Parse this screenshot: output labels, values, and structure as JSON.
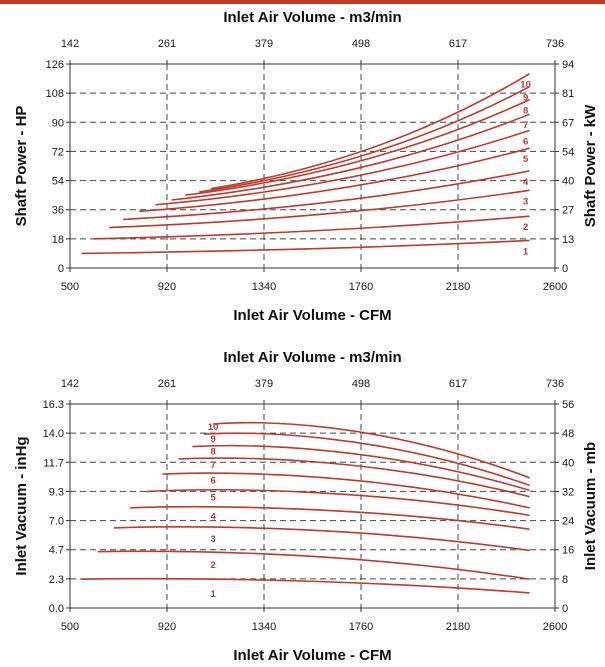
{
  "chart_data": [
    {
      "type": "line",
      "top_axis_label": "Inlet Air Volume - m3/min",
      "top_axis_ticks": [
        "142",
        "261",
        "379",
        "498",
        "617",
        "736"
      ],
      "xlabel": "Inlet Air Volume - CFM",
      "x_ticks": [
        "500",
        "920",
        "1340",
        "1760",
        "2180",
        "2600"
      ],
      "xlim": [
        500,
        2600
      ],
      "ylabel": "Shaft Power - HP",
      "y_ticks": [
        "0",
        "18",
        "36",
        "54",
        "72",
        "90",
        "108",
        "126"
      ],
      "ylim": [
        0,
        126
      ],
      "y2label": "Shaft Power - kW",
      "y2_ticks": [
        "0",
        "13",
        "27",
        "40",
        "54",
        "67",
        "81",
        "94"
      ],
      "grid": true,
      "line_color": "#c0392b",
      "series": [
        {
          "name": "1",
          "x": [
            550,
            2490
          ],
          "y": [
            9,
            17
          ]
        },
        {
          "name": "2",
          "x": [
            600,
            2490
          ],
          "y": [
            18,
            32
          ]
        },
        {
          "name": "3",
          "x": [
            670,
            2490
          ],
          "y": [
            25,
            48
          ]
        },
        {
          "name": "4",
          "x": [
            730,
            2490
          ],
          "y": [
            30,
            60
          ]
        },
        {
          "name": "5",
          "x": [
            800,
            2490
          ],
          "y": [
            35,
            74
          ]
        },
        {
          "name": "6",
          "x": [
            870,
            2490
          ],
          "y": [
            39,
            85
          ]
        },
        {
          "name": "7",
          "x": [
            940,
            2490
          ],
          "y": [
            42,
            95
          ]
        },
        {
          "name": "8",
          "x": [
            1000,
            2490
          ],
          "y": [
            45,
            104
          ]
        },
        {
          "name": "9",
          "x": [
            1060,
            2490
          ],
          "y": [
            47,
            112
          ]
        },
        {
          "name": "10",
          "x": [
            1110,
            2490
          ],
          "y": [
            49,
            120
          ]
        }
      ]
    },
    {
      "type": "line",
      "top_axis_label": "Inlet Air Volume - m3/min",
      "top_axis_ticks": [
        "142",
        "261",
        "379",
        "498",
        "617",
        "736"
      ],
      "xlabel": "Inlet Air Volume - CFM",
      "x_ticks": [
        "500",
        "920",
        "1340",
        "1760",
        "2180",
        "2600"
      ],
      "xlim": [
        500,
        2600
      ],
      "ylabel": "Inlet Vacuum - inHg",
      "y_ticks": [
        "0.0",
        "2.3",
        "4.7",
        "7.0",
        "9.3",
        "11.7",
        "14.0",
        "16.3"
      ],
      "ylim": [
        0,
        16.3
      ],
      "y2label": "Inlet Vacuum - mb",
      "y2_ticks": [
        "0",
        "8",
        "16",
        "24",
        "32",
        "40",
        "48",
        "56"
      ],
      "grid": true,
      "line_color": "#c0392b",
      "series": [
        {
          "name": "1",
          "x": [
            550,
            1200,
            2490
          ],
          "y": [
            2.3,
            2.4,
            1.2
          ]
        },
        {
          "name": "2",
          "x": [
            620,
            1250,
            2490
          ],
          "y": [
            4.5,
            4.6,
            2.3
          ]
        },
        {
          "name": "3",
          "x": [
            690,
            1300,
            2490
          ],
          "y": [
            6.4,
            6.6,
            4.6
          ]
        },
        {
          "name": "4",
          "x": [
            760,
            1330,
            2490
          ],
          "y": [
            8.0,
            8.2,
            6.3
          ]
        },
        {
          "name": "5",
          "x": [
            830,
            1370,
            2490
          ],
          "y": [
            9.3,
            9.6,
            7.4
          ]
        },
        {
          "name": "6",
          "x": [
            900,
            1400,
            2490
          ],
          "y": [
            10.7,
            10.9,
            8.0
          ]
        },
        {
          "name": "7",
          "x": [
            970,
            1430,
            2490
          ],
          "y": [
            11.9,
            12.1,
            8.9
          ]
        },
        {
          "name": "8",
          "x": [
            1030,
            1450,
            2490
          ],
          "y": [
            12.9,
            13.1,
            9.4
          ]
        },
        {
          "name": "9",
          "x": [
            1080,
            1470,
            2490
          ],
          "y": [
            13.9,
            14.1,
            9.8
          ]
        },
        {
          "name": "10",
          "x": [
            1120,
            1490,
            2490
          ],
          "y": [
            14.7,
            15.0,
            10.4
          ]
        }
      ]
    }
  ]
}
